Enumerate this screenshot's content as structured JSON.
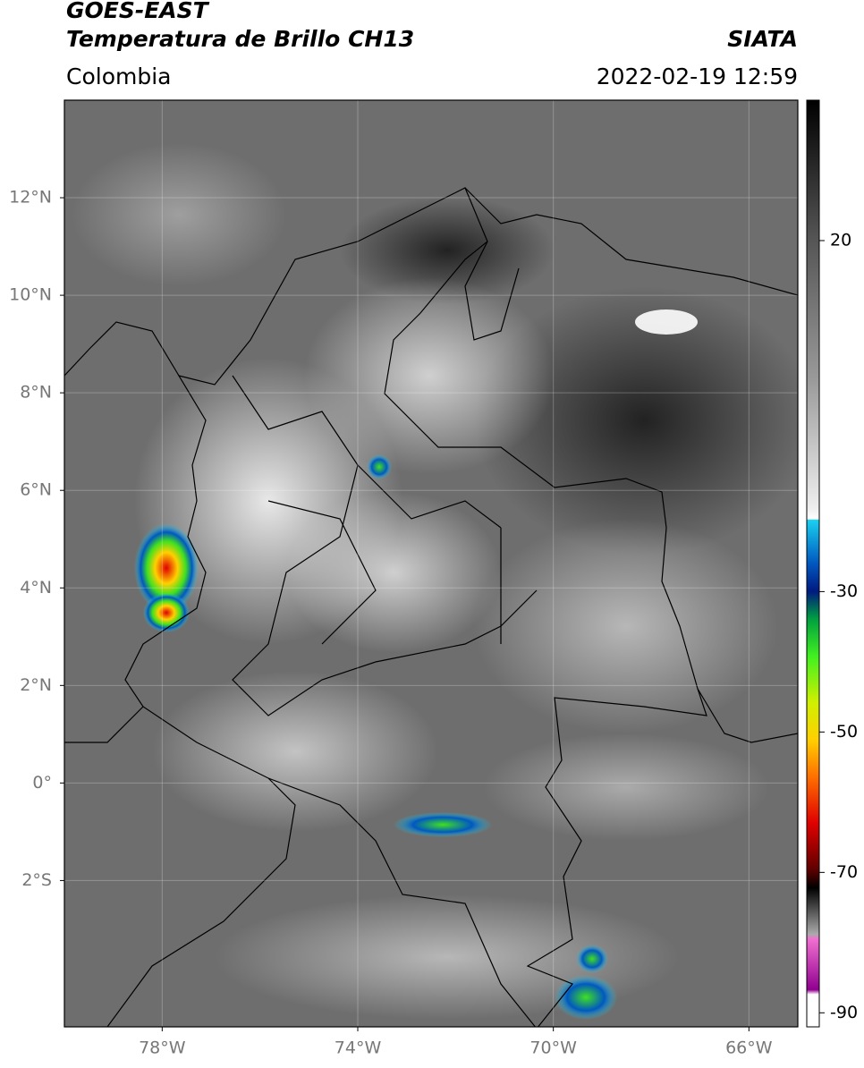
{
  "header": {
    "title": "GOES-EAST",
    "subtitle": "Temperatura de Brillo CH13",
    "source": "SIATA",
    "region": "Colombia",
    "datetime": "2022-02-19 12:59"
  },
  "map": {
    "xlim": [
      -80,
      -65
    ],
    "ylim": [
      -5,
      14
    ],
    "grid": true,
    "xticks": [
      {
        "value": -78,
        "label": "78°W"
      },
      {
        "value": -74,
        "label": "74°W"
      },
      {
        "value": -70,
        "label": "70°W"
      },
      {
        "value": -66,
        "label": "66°W"
      }
    ],
    "yticks": [
      {
        "value": 12,
        "label": "12°N"
      },
      {
        "value": 10,
        "label": "10°N"
      },
      {
        "value": 8,
        "label": "8°N"
      },
      {
        "value": 6,
        "label": "6°N"
      },
      {
        "value": 4,
        "label": "4°N"
      },
      {
        "value": 2,
        "label": "2°N"
      },
      {
        "value": 0,
        "label": "0°"
      },
      {
        "value": -2,
        "label": "2°S"
      }
    ]
  },
  "colorbar": {
    "lim": [
      40,
      -92
    ],
    "ticks": [
      20,
      -30,
      -50,
      -70,
      -90
    ]
  }
}
